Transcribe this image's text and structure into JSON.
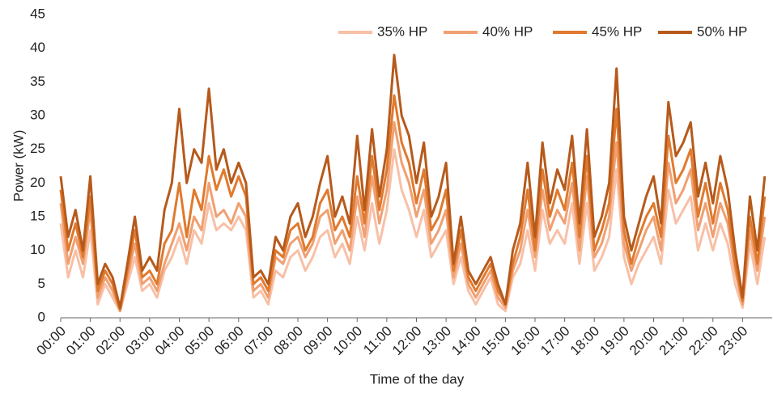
{
  "chart_data": {
    "type": "line",
    "x_label": "Time of the day",
    "y_label": "Power (kW)",
    "xlim": [
      0,
      24
    ],
    "ylim": [
      0,
      45
    ],
    "xticks": [
      {
        "value": 0,
        "label": "00:00"
      },
      {
        "value": 1,
        "label": "01:00"
      },
      {
        "value": 2,
        "label": "02:00"
      },
      {
        "value": 3,
        "label": "03:00"
      },
      {
        "value": 4,
        "label": "04:00"
      },
      {
        "value": 5,
        "label": "05:00"
      },
      {
        "value": 6,
        "label": "06:00"
      },
      {
        "value": 7,
        "label": "07:00"
      },
      {
        "value": 8,
        "label": "08:00"
      },
      {
        "value": 9,
        "label": "09:00"
      },
      {
        "value": 10,
        "label": "10:00"
      },
      {
        "value": 11,
        "label": "11:00"
      },
      {
        "value": 12,
        "label": "12:00"
      },
      {
        "value": 13,
        "label": "13:00"
      },
      {
        "value": 14,
        "label": "14:00"
      },
      {
        "value": 15,
        "label": "15:00"
      },
      {
        "value": 16,
        "label": "16:00"
      },
      {
        "value": 17,
        "label": "17:00"
      },
      {
        "value": 18,
        "label": "18:00"
      },
      {
        "value": 19,
        "label": "19:00"
      },
      {
        "value": 20,
        "label": "20:00"
      },
      {
        "value": 21,
        "label": "21:00"
      },
      {
        "value": 22,
        "label": "22:00"
      },
      {
        "value": 23,
        "label": "23:00"
      }
    ],
    "yticks": [
      0,
      5,
      10,
      15,
      20,
      25,
      30,
      35,
      40,
      45
    ],
    "grid": false,
    "legend": "top-right",
    "x": [
      0,
      0.25,
      0.5,
      0.75,
      1,
      1.25,
      1.5,
      1.75,
      2,
      2.25,
      2.5,
      2.75,
      3,
      3.25,
      3.5,
      3.75,
      4,
      4.25,
      4.5,
      4.75,
      5,
      5.25,
      5.5,
      5.75,
      6,
      6.25,
      6.5,
      6.75,
      7,
      7.25,
      7.5,
      7.75,
      8,
      8.25,
      8.5,
      8.75,
      9,
      9.25,
      9.5,
      9.75,
      10,
      10.25,
      10.5,
      10.75,
      11,
      11.25,
      11.5,
      11.75,
      12,
      12.25,
      12.5,
      12.75,
      13,
      13.25,
      13.5,
      13.75,
      14,
      14.25,
      14.5,
      14.75,
      15,
      15.25,
      15.5,
      15.75,
      16,
      16.25,
      16.5,
      16.75,
      17,
      17.25,
      17.5,
      17.75,
      18,
      18.25,
      18.5,
      18.75,
      19,
      19.25,
      19.5,
      19.75,
      20,
      20.25,
      20.5,
      20.75,
      21,
      21.25,
      21.5,
      21.75,
      22,
      22.25,
      22.5,
      22.75,
      23,
      23.25,
      23.5,
      23.75
    ],
    "series": [
      {
        "name": "35% HP",
        "color": "#f8c0a6",
        "values": [
          14,
          6,
          10,
          6,
          13,
          2,
          5,
          3,
          1,
          5,
          9,
          4,
          5,
          3,
          7,
          9,
          12,
          8,
          13,
          11,
          17,
          13,
          14,
          13,
          15,
          13,
          3,
          4,
          2,
          7,
          6,
          9,
          10,
          7,
          9,
          12,
          13,
          9,
          11,
          8,
          15,
          10,
          17,
          11,
          16,
          25,
          19,
          16,
          12,
          16,
          9,
          11,
          13,
          5,
          9,
          4,
          2,
          4,
          6,
          2,
          1,
          6,
          8,
          13,
          7,
          16,
          11,
          13,
          11,
          17,
          8,
          17,
          7,
          9,
          12,
          22,
          9,
          5,
          8,
          10,
          12,
          8,
          19,
          14,
          16,
          18,
          10,
          14,
          10,
          14,
          11,
          5,
          1.5,
          11,
          5,
          12
        ]
      },
      {
        "name": "40% HP",
        "color": "#f0a072",
        "values": [
          17,
          8,
          12,
          8,
          16,
          3,
          6,
          4,
          1,
          6,
          11,
          5,
          6,
          4,
          8,
          11,
          14,
          10,
          15,
          13,
          20,
          15,
          16,
          14,
          17,
          15,
          4,
          5,
          3,
          9,
          8,
          11,
          12,
          9,
          11,
          15,
          16,
          11,
          13,
          10,
          18,
          12,
          21,
          14,
          19,
          29,
          23,
          20,
          15,
          19,
          11,
          13,
          16,
          6,
          11,
          5,
          3,
          5,
          7,
          3,
          1.5,
          7,
          10,
          16,
          9,
          19,
          13,
          16,
          14,
          20,
          10,
          21,
          9,
          11,
          15,
          26,
          11,
          7,
          10,
          13,
          15,
          10,
          23,
          17,
          19,
          22,
          13,
          17,
          12,
          17,
          14,
          7,
          2,
          13,
          7,
          15
        ]
      },
      {
        "name": "45% HP",
        "color": "#e07a2e",
        "values": [
          19,
          10,
          14,
          9,
          18,
          4,
          7,
          5,
          1.2,
          7,
          13,
          6,
          7,
          5,
          11,
          13,
          20,
          12,
          19,
          16,
          24,
          19,
          22,
          18,
          21,
          18,
          5,
          6,
          4,
          10,
          9,
          13,
          14,
          10,
          12,
          17,
          19,
          13,
          15,
          12,
          21,
          14,
          24,
          16,
          22,
          33,
          26,
          23,
          17,
          22,
          13,
          15,
          19,
          7,
          13,
          6,
          4,
          6,
          8,
          4,
          2,
          8,
          12,
          19,
          10,
          22,
          15,
          19,
          16,
          23,
          12,
          24,
          10,
          13,
          17,
          31,
          13,
          8,
          12,
          15,
          17,
          12,
          27,
          20,
          22,
          25,
          15,
          20,
          14,
          20,
          16,
          8,
          2.5,
          15,
          8,
          18
        ]
      },
      {
        "name": "50% HP",
        "color": "#b65a1c",
        "values": [
          21,
          12,
          16,
          10,
          21,
          5,
          8,
          6,
          1.5,
          8,
          15,
          7,
          9,
          7,
          16,
          20,
          31,
          20,
          25,
          23,
          34,
          22,
          25,
          20,
          23,
          20,
          6,
          7,
          5,
          12,
          10,
          15,
          17,
          12,
          15,
          20,
          24,
          15,
          18,
          14,
          27,
          16,
          28,
          18,
          25,
          39,
          30,
          27,
          20,
          26,
          15,
          18,
          23,
          8,
          15,
          7,
          5,
          7,
          9,
          5,
          2,
          10,
          14,
          23,
          12,
          26,
          17,
          22,
          19,
          27,
          14,
          28,
          12,
          15,
          20,
          37,
          15,
          10,
          14,
          18,
          21,
          14,
          32,
          24,
          26,
          29,
          18,
          23,
          17,
          24,
          19,
          10,
          3,
          18,
          10,
          21
        ]
      }
    ]
  }
}
